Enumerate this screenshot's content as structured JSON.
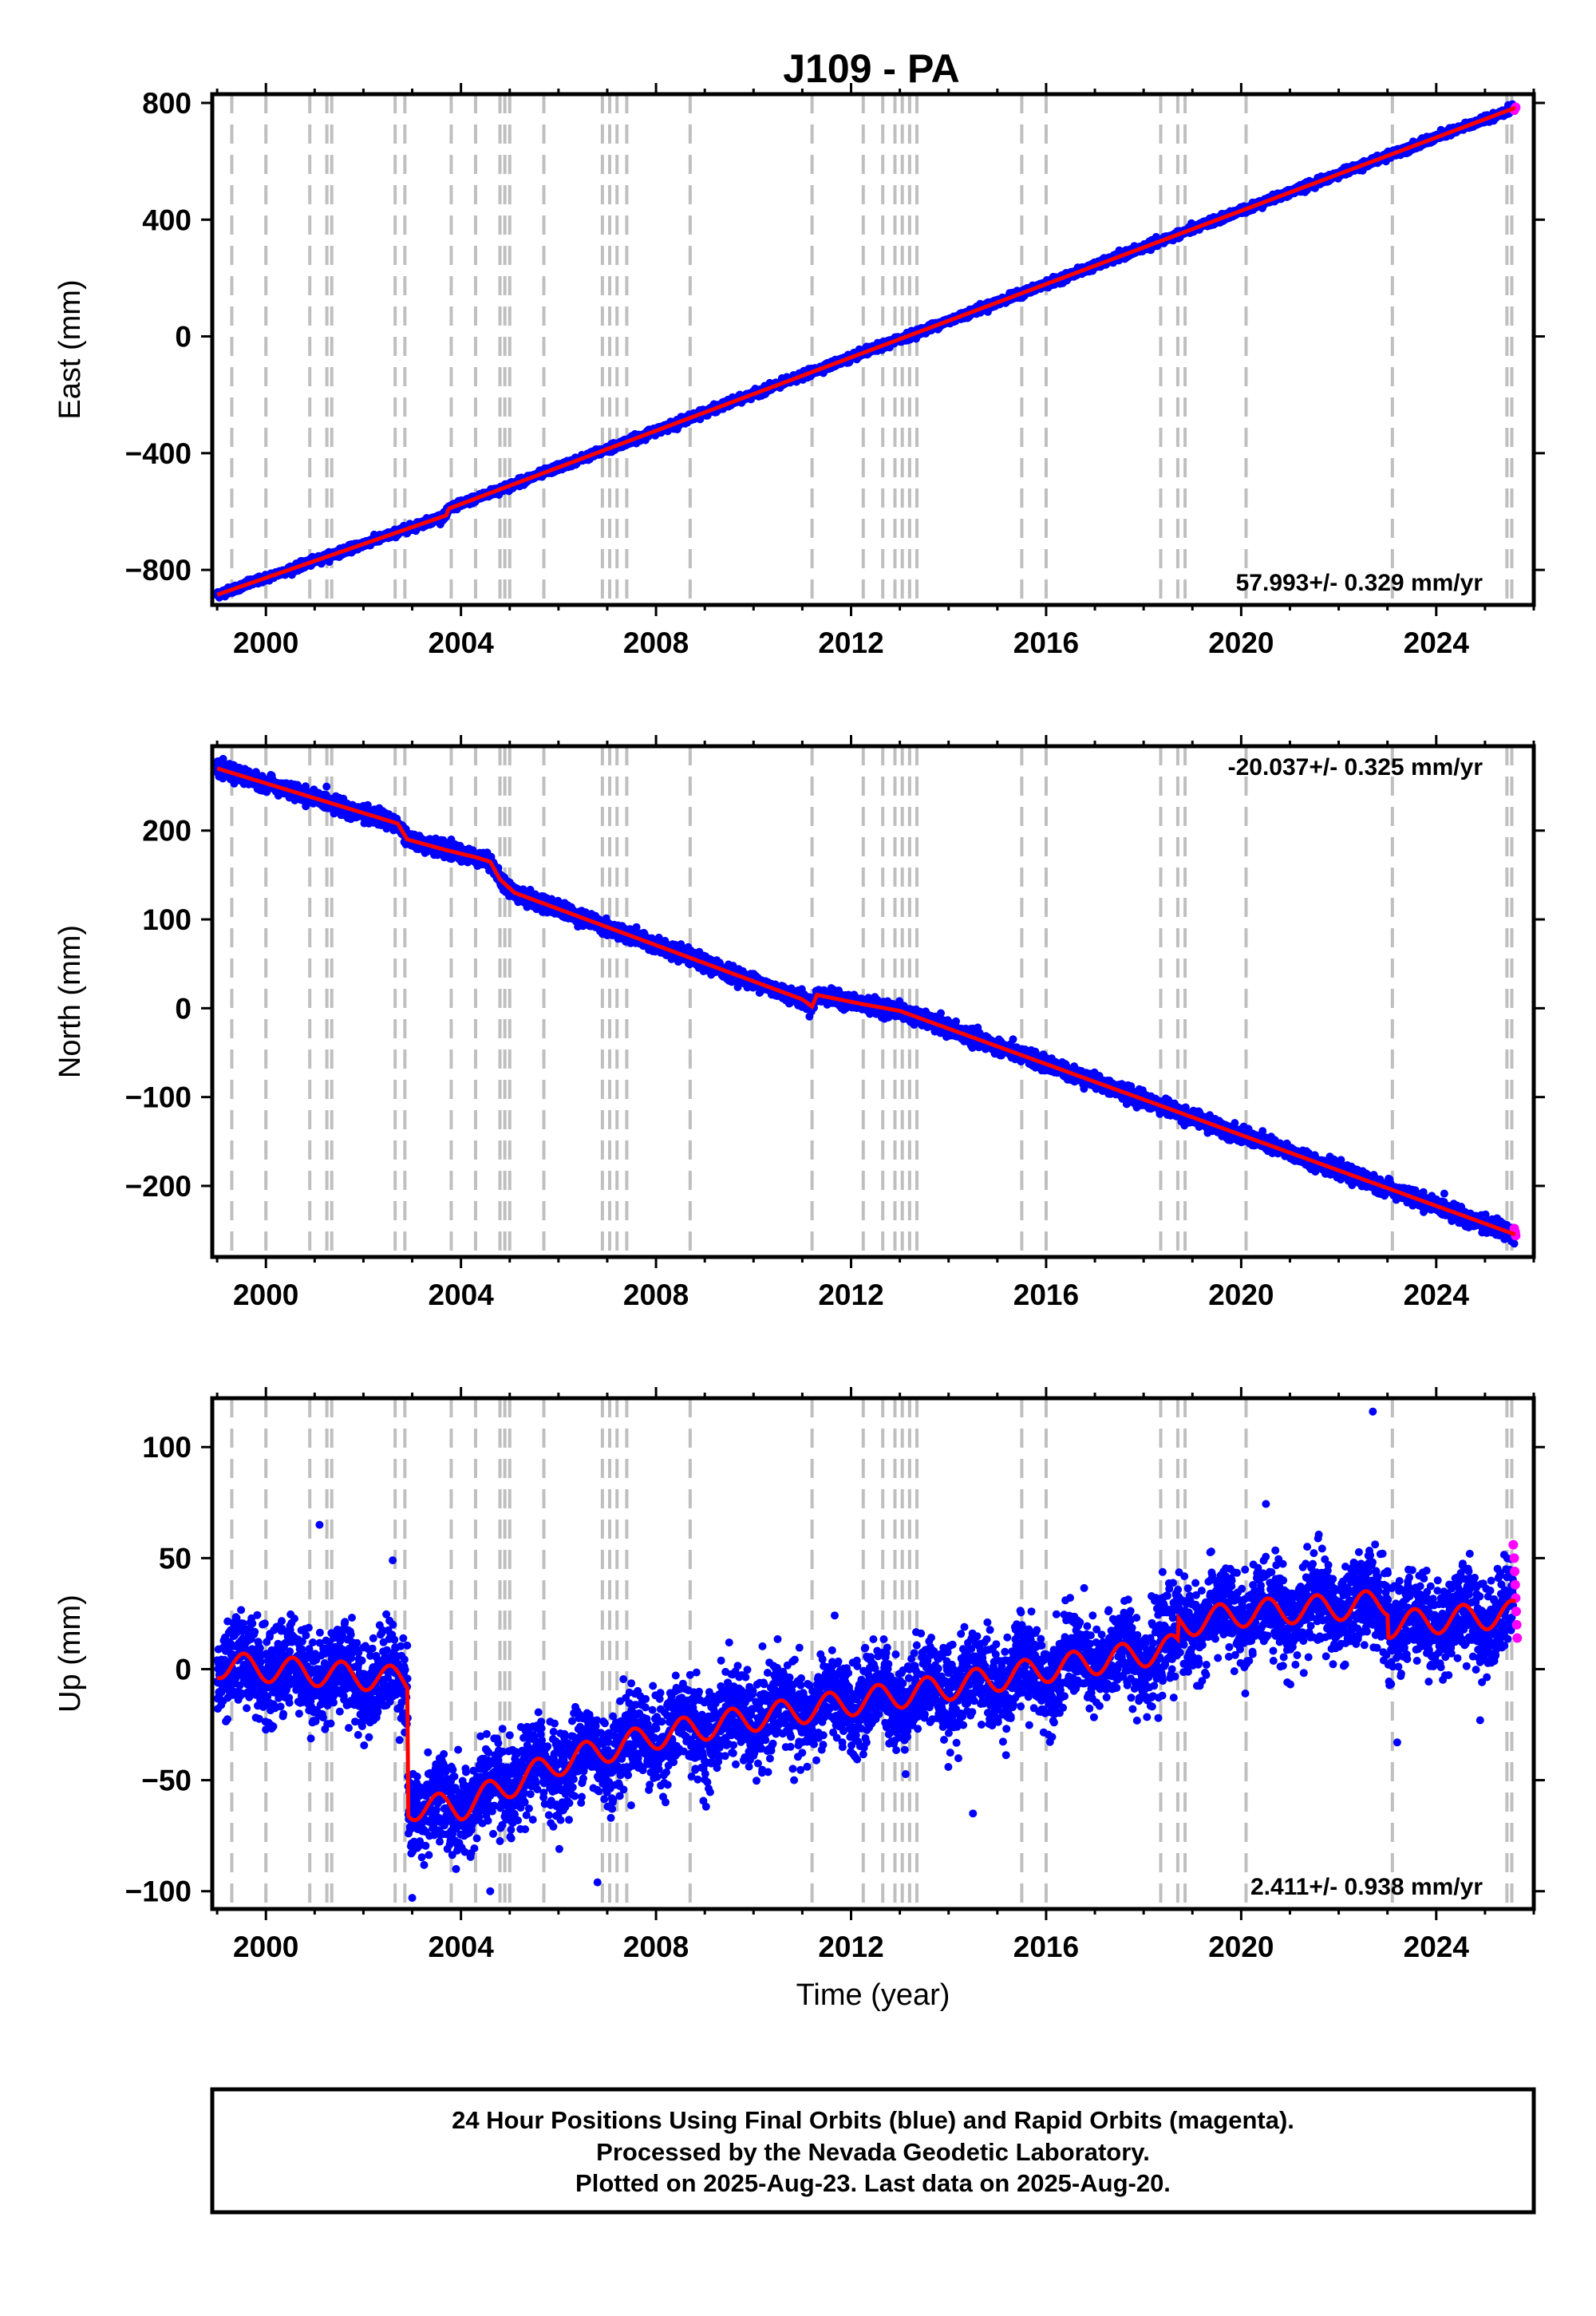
{
  "title": "J109 - PA",
  "footer": {
    "line1": "24 Hour Positions Using Final Orbits (blue) and Rapid Orbits (magenta).",
    "line2": "Processed by the Nevada Geodetic Laboratory.",
    "line3": "Plotted on 2025-Aug-23. Last data on 2025-Aug-20."
  },
  "colors": {
    "final_orbits": "#0000ff",
    "rapid_orbits": "#ff00ff",
    "model_fit": "#ff0000",
    "event_lines": "#bfbfbf"
  },
  "chart_data": [
    {
      "type": "scatter",
      "ylabel": "East (mm)",
      "xlabel": "",
      "xlim": [
        1998.9,
        2026.0
      ],
      "ylim": [
        -920,
        830
      ],
      "xticks": [
        2000,
        2004,
        2008,
        2012,
        2016,
        2020,
        2024
      ],
      "yticks": [
        -800,
        -400,
        0,
        400,
        800
      ],
      "rate": "57.993+/- 0.329 mm/yr",
      "rate_position": "bottom-right",
      "grid": false,
      "data_start": 1999.0,
      "data_end": 2025.63,
      "noise_mm": 6,
      "model": {
        "x": [
          1999.0,
          2003.7,
          2003.75,
          2025.63
        ],
        "y": [
          -885,
          -613,
          -590,
          784
        ]
      },
      "outliers": [],
      "rapid_points": [
        [
          2025.6,
          775
        ],
        [
          2025.62,
          781
        ],
        [
          2025.63,
          785
        ]
      ]
    },
    {
      "type": "scatter",
      "ylabel": "North (mm)",
      "xlabel": "",
      "xlim": [
        1998.9,
        2026.0
      ],
      "ylim": [
        -280,
        295
      ],
      "xticks": [
        2000,
        2004,
        2008,
        2012,
        2016,
        2020,
        2024
      ],
      "yticks": [
        -200,
        -100,
        0,
        100,
        200
      ],
      "rate": "-20.037+/- 0.325 mm/yr",
      "rate_position": "top-right",
      "grid": false,
      "data_start": 1999.0,
      "data_end": 2025.63,
      "noise_mm": 4,
      "model": {
        "x": [
          1999.0,
          2002.7,
          2002.9,
          2003.7,
          2004.3,
          2004.6,
          2004.8,
          2005.1,
          2011.0,
          2011.2,
          2011.3,
          2012.2,
          2012.7,
          2013.0,
          2025.63
        ],
        "y": [
          270,
          208,
          190,
          178,
          170,
          165,
          145,
          130,
          10,
          2,
          15,
          5,
          0,
          -3,
          -255
        ]
      },
      "outliers": [
        [
          2025.6,
          -265
        ],
        [
          2003.8,
          190
        ]
      ],
      "rapid_points": [
        [
          2025.6,
          -248
        ],
        [
          2025.62,
          -252
        ],
        [
          2025.63,
          -256
        ]
      ]
    },
    {
      "type": "scatter",
      "ylabel": "Up (mm)",
      "xlabel": "Time (year)",
      "xlim": [
        1998.9,
        2026.0
      ],
      "ylim": [
        -108,
        122
      ],
      "xticks": [
        2000,
        2004,
        2008,
        2012,
        2016,
        2020,
        2024
      ],
      "yticks": [
        -100,
        -50,
        0,
        50,
        100
      ],
      "rate": "2.411+/- 0.938 mm/yr",
      "rate_position": "bottom-right",
      "grid": false,
      "data_start": 1999.0,
      "data_end": 2025.63,
      "noise_mm": 10,
      "model": {
        "x": [
          1999.0,
          2002.9,
          2002.92,
          2004.0,
          2006.0,
          2008.0,
          2010.0,
          2012.0,
          2014.0,
          2016.0,
          2018.0,
          2018.7,
          2018.72,
          2020.0,
          2022.0,
          2023.0,
          2023.02,
          2024.0,
          2025.63
        ],
        "y": [
          2,
          -5,
          -62,
          -62,
          -42,
          -30,
          -22,
          -15,
          -8,
          0,
          7,
          10,
          20,
          25,
          28,
          30,
          20,
          22,
          25
        ]
      },
      "outliers": [
        [
          2022.7,
          116
        ],
        [
          2001.1,
          65
        ],
        [
          2002.6,
          49
        ],
        [
          2023.2,
          -33
        ],
        [
          2024.9,
          -23
        ],
        [
          2003.0,
          -103
        ],
        [
          2004.6,
          -100
        ],
        [
          2006.8,
          -96
        ],
        [
          2014.5,
          -65
        ],
        [
          2018.3,
          -22
        ],
        [
          2009.5,
          12
        ],
        [
          2003.9,
          -90
        ]
      ],
      "rapid_points": [
        [
          2025.58,
          56
        ],
        [
          2025.6,
          50
        ],
        [
          2025.61,
          44
        ],
        [
          2025.62,
          38
        ],
        [
          2025.63,
          32
        ],
        [
          2025.64,
          26
        ],
        [
          2025.65,
          20
        ],
        [
          2025.66,
          14
        ]
      ]
    }
  ],
  "event_lines": [
    1999.3,
    2000.0,
    2000.9,
    2001.25,
    2001.35,
    2002.65,
    2002.85,
    2003.8,
    2004.3,
    2004.8,
    2004.9,
    2005.0,
    2005.7,
    2006.9,
    2007.05,
    2007.2,
    2007.4,
    2008.7,
    2011.2,
    2012.25,
    2012.65,
    2012.9,
    2013.05,
    2013.2,
    2013.35,
    2015.5,
    2016.0,
    2018.35,
    2018.7,
    2018.85,
    2020.1,
    2023.1,
    2025.45,
    2025.55
  ]
}
